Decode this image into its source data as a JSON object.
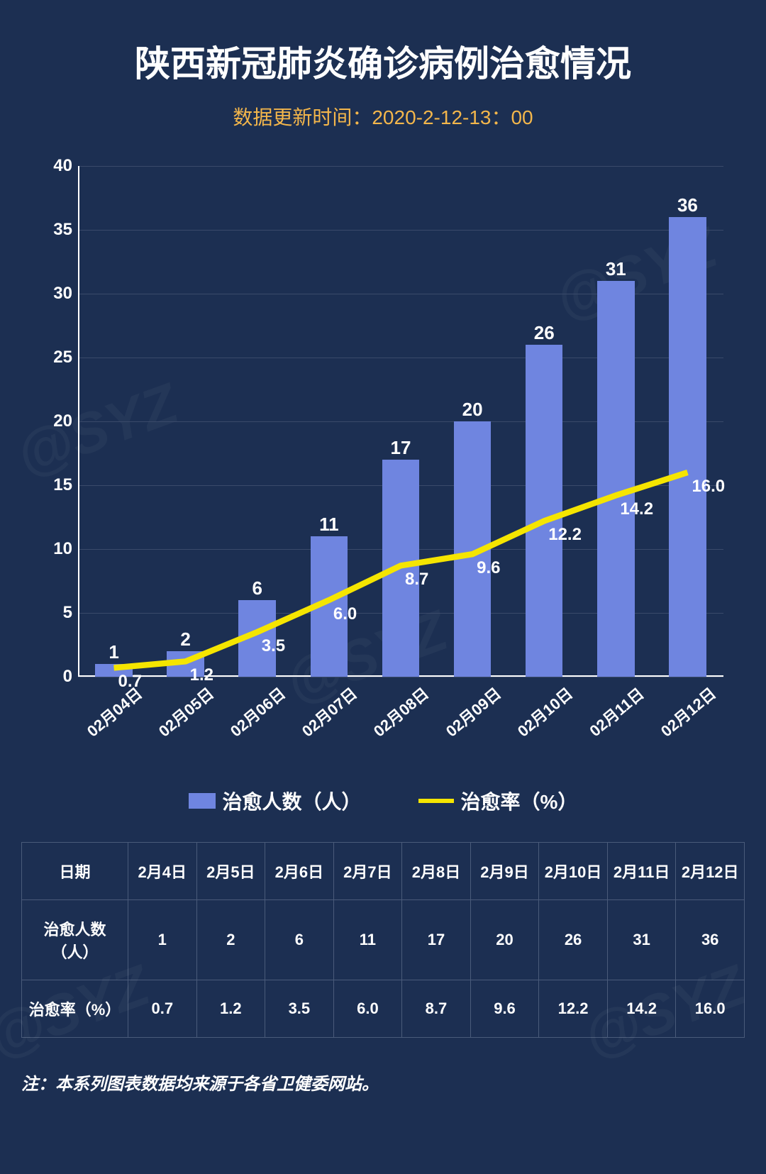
{
  "title": {
    "text": "陕西新冠肺炎确诊病例治愈情况",
    "fontsize": 50,
    "color": "#ffffff"
  },
  "subtitle": {
    "text": "数据更新时间：2020-2-12-13：00",
    "fontsize": 28,
    "color": "#f3b64b"
  },
  "watermark": {
    "text": "@SYZ"
  },
  "chart": {
    "type": "bar+line",
    "background_color": "#1c2f52",
    "grid_color": "#3a4a6a",
    "axis_color": "#ffffff",
    "categories": [
      "02月04日",
      "02月05日",
      "02月06日",
      "02月07日",
      "02月08日",
      "02月09日",
      "02月10日",
      "02月11日",
      "02月12日"
    ],
    "bar_series": {
      "name": "治愈人数（人）",
      "values": [
        1,
        2,
        6,
        11,
        17,
        20,
        26,
        31,
        36
      ],
      "color": "#6f85e0",
      "label_color": "#ffffff",
      "label_fontsize": 26,
      "bar_width_ratio": 0.52
    },
    "line_series": {
      "name": "治愈率（%）",
      "values": [
        0.7,
        1.2,
        3.5,
        6.0,
        8.7,
        9.6,
        12.2,
        14.2,
        16.0
      ],
      "labels": [
        "0.7",
        "1.2",
        "3.5",
        "6.0",
        "8.7",
        "9.6",
        "12.2",
        "14.2",
        "16.0"
      ],
      "color": "#f5e500",
      "line_width": 6,
      "label_color": "#ffffff",
      "label_fontsize": 24
    },
    "y_axis": {
      "min": 0,
      "max": 40,
      "ticks": [
        0,
        5,
        10,
        15,
        20,
        25,
        30,
        35,
        40
      ],
      "label_fontsize": 24,
      "label_color": "#ffffff"
    },
    "x_axis": {
      "label_fontsize": 22,
      "label_color": "#ffffff",
      "rotation": -40
    },
    "legend": {
      "fontsize": 28,
      "text_color": "#ffffff"
    }
  },
  "table": {
    "border_color": "#4a5b7a",
    "text_color": "#ffffff",
    "fontsize": 22,
    "header_row": [
      "日期",
      "2月4日",
      "2月5日",
      "2月6日",
      "2月7日",
      "2月8日",
      "2月9日",
      "2月10日",
      "2月11日",
      "2月12日"
    ],
    "rows": [
      [
        "治愈人数（人）",
        "1",
        "2",
        "6",
        "11",
        "17",
        "20",
        "26",
        "31",
        "36"
      ],
      [
        "治愈率（%）",
        "0.7",
        "1.2",
        "3.5",
        "6.0",
        "8.7",
        "9.6",
        "12.2",
        "14.2",
        "16.0"
      ]
    ]
  },
  "footnote": {
    "text": "注：本系列图表数据均来源于各省卫健委网站。",
    "fontsize": 24,
    "color": "#ffffff"
  }
}
